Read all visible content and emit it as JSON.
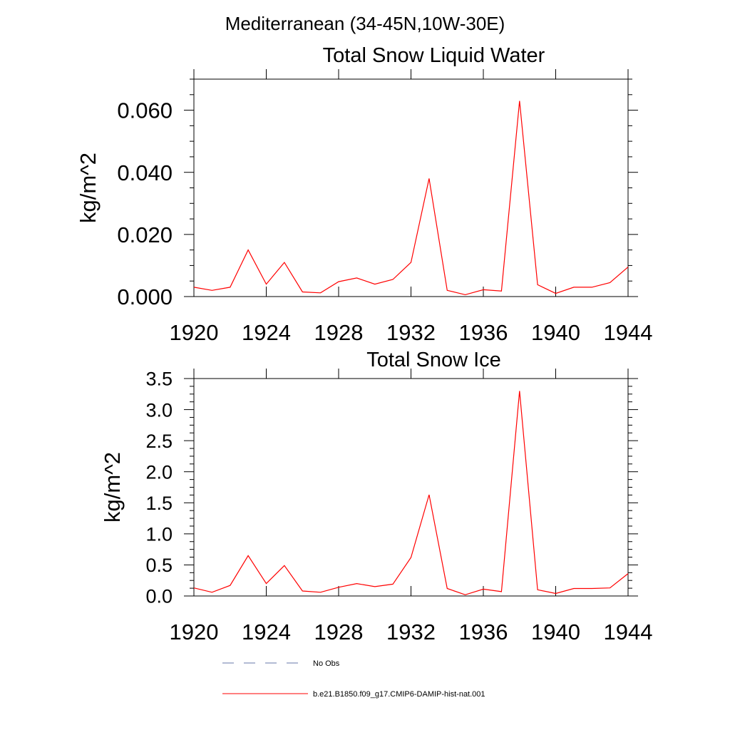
{
  "figure_title": "Mediterranean (34-45N,10W-30E)",
  "chart_data": [
    {
      "type": "line",
      "title": "Total Snow Liquid Water",
      "xlabel": "",
      "ylabel": "kg/m^2",
      "xlim": [
        1920,
        1944
      ],
      "ylim": [
        0,
        0.07
      ],
      "x_ticks": [
        "1920",
        "1924",
        "1928",
        "1932",
        "1936",
        "1940",
        "1944"
      ],
      "y_ticks": [
        "0.000",
        "0.020",
        "0.040",
        "0.060"
      ],
      "series": [
        {
          "name": "b.e21.B1850.f09_g17.CMIP6-DAMIP-hist-nat.001",
          "color": "#ff0000",
          "x": [
            1920,
            1921,
            1922,
            1923,
            1924,
            1925,
            1926,
            1927,
            1928,
            1929,
            1930,
            1931,
            1932,
            1933,
            1934,
            1935,
            1936,
            1937,
            1938,
            1939,
            1940,
            1941,
            1942,
            1943,
            1944
          ],
          "values": [
            0.003,
            0.002,
            0.003,
            0.015,
            0.004,
            0.011,
            0.0015,
            0.0012,
            0.0048,
            0.006,
            0.004,
            0.0055,
            0.011,
            0.038,
            0.002,
            0.0006,
            0.0022,
            0.0018,
            0.063,
            0.0038,
            0.001,
            0.003,
            0.003,
            0.0045,
            0.0095
          ]
        }
      ]
    },
    {
      "type": "line",
      "title": "Total Snow Ice",
      "xlabel": "",
      "ylabel": "kg/m^2",
      "xlim": [
        1920,
        1944
      ],
      "ylim": [
        0,
        3.5
      ],
      "x_ticks": [
        "1920",
        "1924",
        "1928",
        "1932",
        "1936",
        "1940",
        "1944"
      ],
      "y_ticks": [
        "0.0",
        "0.5",
        "1.0",
        "1.5",
        "2.0",
        "2.5",
        "3.0",
        "3.5"
      ],
      "series": [
        {
          "name": "b.e21.B1850.f09_g17.CMIP6-DAMIP-hist-nat.001",
          "color": "#ff0000",
          "x": [
            1920,
            1921,
            1922,
            1923,
            1924,
            1925,
            1926,
            1927,
            1928,
            1929,
            1930,
            1931,
            1932,
            1933,
            1934,
            1935,
            1936,
            1937,
            1938,
            1939,
            1940,
            1941,
            1942,
            1943,
            1944
          ],
          "values": [
            0.13,
            0.06,
            0.17,
            0.65,
            0.2,
            0.49,
            0.08,
            0.06,
            0.14,
            0.2,
            0.15,
            0.19,
            0.62,
            1.63,
            0.12,
            0.02,
            0.11,
            0.07,
            3.3,
            0.1,
            0.04,
            0.12,
            0.12,
            0.13,
            0.36
          ]
        }
      ]
    }
  ],
  "legend": [
    {
      "label": "No Obs",
      "color": "#6677aa",
      "style": "dashed"
    },
    {
      "label": "b.e21.B1850.f09_g17.CMIP6-DAMIP-hist-nat.001",
      "color": "#ff0000",
      "style": "solid"
    }
  ]
}
